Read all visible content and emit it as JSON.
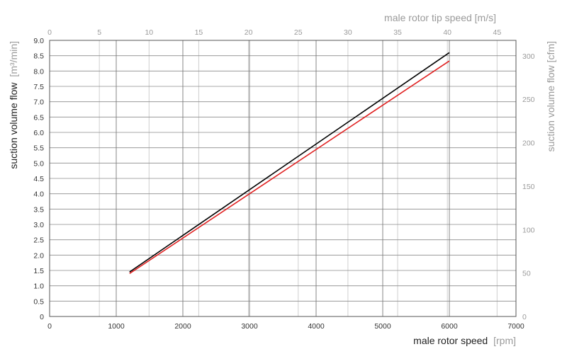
{
  "chart_data": {
    "type": "line",
    "xlabel": "male rotor speed",
    "xlabel_unit": "[rpm]",
    "x_ticks": [
      "0",
      "1000",
      "2000",
      "3000",
      "4000",
      "5000",
      "6000",
      "7000"
    ],
    "xlim": [
      0,
      7000
    ],
    "ylabel": "suction volume flow",
    "ylabel_unit": "[m³/min]",
    "y_ticks": [
      "0",
      "0.5",
      "1.0",
      "1.5",
      "2.0",
      "2.5",
      "3.0",
      "3.5",
      "4.0",
      "4.5",
      "5.0",
      "5.5",
      "6.0",
      "6.5",
      "7.0",
      "7.5",
      "8.0",
      "8.5",
      "9.0"
    ],
    "ylim": [
      0,
      9
    ],
    "x2label": "male rotor tip speed [m/s]",
    "x2_ticks": [
      "0",
      "5",
      "10",
      "15",
      "20",
      "25",
      "30",
      "35",
      "40",
      "45"
    ],
    "x2lim": [
      0,
      46.9
    ],
    "y2label": "suction volume flow [cfm]",
    "y2_ticks": [
      "0",
      "50",
      "100",
      "150",
      "200",
      "250",
      "300"
    ],
    "y2lim": [
      0,
      317.8
    ],
    "grid": true,
    "series": [
      {
        "color": "#000000",
        "x": [
          1200,
          6000
        ],
        "y": [
          1.45,
          8.6
        ]
      },
      {
        "color": "#e02020",
        "x": [
          1200,
          6000
        ],
        "y": [
          1.4,
          8.33
        ]
      }
    ]
  }
}
